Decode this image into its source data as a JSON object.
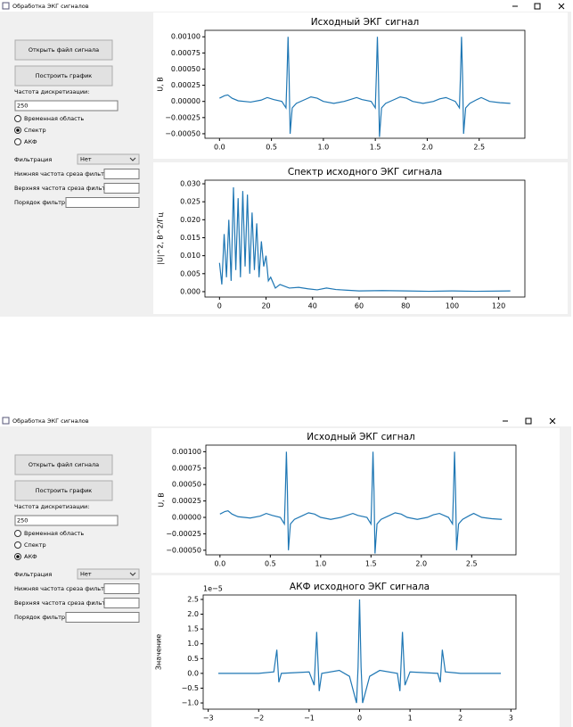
{
  "windows": [
    {
      "title": "Обработка ЭКГ сигналов",
      "buttons": [
        "Открыть файл сигнала",
        "Построить график"
      ],
      "sampling_label": "Частота дискретизации:",
      "sampling_value": "250",
      "radios": [
        {
          "label": "Временная область",
          "checked": false
        },
        {
          "label": "Спектр",
          "checked": true
        },
        {
          "label": "АКФ",
          "checked": false
        }
      ],
      "filter_label": "Фильтрация",
      "filter_value": "Нет",
      "low_label": "Нижняя частота среза фильтра:",
      "high_label": "Верхняя частота среза фильтра:",
      "order_label": "Порядок фильтра:",
      "plots": [
        {
          "type": "line",
          "title": "Исходный ЭКГ сигнал",
          "ylabel": "U, В",
          "color": "#1f77b4",
          "x": [
            0,
            0.05,
            0.08,
            0.12,
            0.18,
            0.3,
            0.4,
            0.46,
            0.52,
            0.6,
            0.64,
            0.65,
            0.66,
            0.67,
            0.68,
            0.7,
            0.74,
            0.81,
            0.88,
            0.94,
            1.0,
            1.1,
            1.2,
            1.26,
            1.32,
            1.37,
            1.46,
            1.5,
            1.51,
            1.52,
            1.53,
            1.54,
            1.56,
            1.6,
            1.67,
            1.74,
            1.8,
            1.86,
            1.96,
            2.06,
            2.12,
            2.18,
            2.24,
            2.27,
            2.31,
            2.32,
            2.33,
            2.34,
            2.35,
            2.37,
            2.41,
            2.48,
            2.52,
            2.6,
            2.7,
            2.8
          ],
          "y": [
            5e-05,
            9e-05,
            0.0001,
            5e-05,
            1e-05,
            -1e-05,
            2e-05,
            6e-05,
            3e-05,
            0,
            -0.0001,
            0.0004,
            0.001,
            0.0004,
            -0.0005,
            -0.0001,
            -3e-05,
            2e-05,
            7e-05,
            5e-05,
            0,
            -3e-05,
            0,
            3e-05,
            6e-05,
            3e-05,
            0,
            -0.0001,
            0.0004,
            0.001,
            0.0004,
            -0.00055,
            -0.0001,
            -3e-05,
            2e-05,
            7e-05,
            5e-05,
            0,
            -3e-05,
            0,
            4e-05,
            6e-05,
            2e-05,
            0,
            -0.0001,
            0.0004,
            0.001,
            0.0004,
            -0.0005,
            -0.0001,
            -3e-05,
            3e-05,
            6e-05,
            0,
            -2e-05,
            -3e-05
          ],
          "xlim": [
            -0.14,
            2.94
          ],
          "ylim": [
            -0.00057,
            0.0011
          ],
          "xticks": [
            {
              "value": 0,
              "label": "0.0"
            },
            0.5,
            {
              "value": 1,
              "label": "1.0"
            },
            1.5,
            {
              "value": 2,
              "label": "2.0"
            },
            2.5
          ],
          "yticks": [
            {
              "value": -0.0005,
              "label": "−0.00050"
            },
            {
              "value": -0.00025,
              "label": "−0.00025"
            },
            {
              "value": 0,
              "label": "0.00000"
            },
            {
              "value": 0.00025,
              "label": "0.00025"
            },
            {
              "value": 0.0005,
              "label": "0.00050"
            },
            {
              "value": 0.00075,
              "label": "0.00075"
            },
            {
              "value": 0.001,
              "label": "0.00100"
            }
          ]
        },
        {
          "type": "line",
          "title": "Спектр исходного ЭКГ сигнала",
          "ylabel": "|U|^2, В^2/Гц",
          "color": "#1f77b4",
          "x": [
            0,
            1,
            2,
            3,
            4,
            5,
            6,
            7,
            8,
            9,
            10,
            11,
            12,
            13,
            14,
            15,
            16,
            17,
            18,
            19,
            20,
            21,
            22,
            24,
            26,
            28,
            30,
            34,
            38,
            42,
            46,
            50,
            55,
            60,
            70,
            80,
            90,
            100,
            110,
            125
          ],
          "y": [
            0.008,
            0.002,
            0.016,
            0.004,
            0.02,
            0.003,
            0.029,
            0.006,
            0.026,
            0.004,
            0.028,
            0.007,
            0.027,
            0.005,
            0.022,
            0.006,
            0.019,
            0.004,
            0.014,
            0.007,
            0.01,
            0.003,
            0.004,
            0.001,
            0.002,
            0.0015,
            0.001,
            0.0012,
            0.0008,
            0.0005,
            0.001,
            0.0006,
            0.0004,
            0.0002,
            0.0003,
            0.0002,
            0.0001,
            0.0002,
            0.0001,
            0.0002
          ],
          "xlim": [
            -6.25,
            131.25
          ],
          "ylim": [
            -0.0015,
            0.031
          ],
          "xticks": [
            0,
            20,
            40,
            60,
            80,
            100,
            120
          ],
          "yticks": [
            {
              "value": 0,
              "label": "0.000"
            },
            {
              "value": 0.005,
              "label": "0.005"
            },
            {
              "value": 0.01,
              "label": "0.010"
            },
            {
              "value": 0.015,
              "label": "0.015"
            },
            {
              "value": 0.02,
              "label": "0.020"
            },
            {
              "value": 0.025,
              "label": "0.025"
            },
            {
              "value": 0.03,
              "label": "0.030"
            }
          ]
        }
      ]
    },
    {
      "title": "Обработка ЭКГ сигналов",
      "buttons": [
        "Открыть файл сигнала",
        "Построить график"
      ],
      "sampling_label": "Частота дискретизации:",
      "sampling_value": "250",
      "radios": [
        {
          "label": "Временная область",
          "checked": false
        },
        {
          "label": "Спектр",
          "checked": false
        },
        {
          "label": "АКФ",
          "checked": true
        }
      ],
      "filter_label": "Фильтрация",
      "filter_value": "Нет",
      "low_label": "Нижняя частота среза фильтра:",
      "high_label": "Верхняя частота среза фильтра:",
      "order_label": "Порядок фильтра:",
      "plots": [
        {
          "type": "line",
          "title": "Исходный ЭКГ сигнал",
          "ylabel": "U, В",
          "color": "#1f77b4",
          "x": [
            0,
            0.05,
            0.08,
            0.12,
            0.18,
            0.3,
            0.4,
            0.46,
            0.52,
            0.6,
            0.64,
            0.65,
            0.66,
            0.67,
            0.68,
            0.7,
            0.74,
            0.81,
            0.88,
            0.94,
            1.0,
            1.1,
            1.2,
            1.26,
            1.32,
            1.37,
            1.46,
            1.5,
            1.51,
            1.52,
            1.53,
            1.54,
            1.56,
            1.6,
            1.67,
            1.74,
            1.8,
            1.86,
            1.96,
            2.06,
            2.12,
            2.18,
            2.24,
            2.27,
            2.31,
            2.32,
            2.33,
            2.34,
            2.35,
            2.37,
            2.41,
            2.48,
            2.52,
            2.6,
            2.7,
            2.8
          ],
          "y": [
            5e-05,
            9e-05,
            0.0001,
            5e-05,
            1e-05,
            -1e-05,
            2e-05,
            6e-05,
            3e-05,
            0,
            -0.0001,
            0.0004,
            0.001,
            0.0004,
            -0.0005,
            -0.0001,
            -3e-05,
            2e-05,
            7e-05,
            5e-05,
            0,
            -3e-05,
            0,
            3e-05,
            6e-05,
            3e-05,
            0,
            -0.0001,
            0.0004,
            0.001,
            0.0004,
            -0.00055,
            -0.0001,
            -3e-05,
            2e-05,
            7e-05,
            5e-05,
            0,
            -3e-05,
            0,
            4e-05,
            6e-05,
            2e-05,
            0,
            -0.0001,
            0.0004,
            0.001,
            0.0004,
            -0.0005,
            -0.0001,
            -3e-05,
            3e-05,
            6e-05,
            0,
            -2e-05,
            -3e-05
          ],
          "xlim": [
            -0.14,
            2.94
          ],
          "ylim": [
            -0.00057,
            0.0011
          ],
          "xticks": [
            {
              "value": 0,
              "label": "0.0"
            },
            0.5,
            {
              "value": 1,
              "label": "1.0"
            },
            1.5,
            {
              "value": 2,
              "label": "2.0"
            },
            2.5
          ],
          "yticks": [
            {
              "value": -0.0005,
              "label": "−0.00050"
            },
            {
              "value": -0.00025,
              "label": "−0.00025"
            },
            {
              "value": 0,
              "label": "0.00000"
            },
            {
              "value": 0.00025,
              "label": "0.00025"
            },
            {
              "value": 0.0005,
              "label": "0.00050"
            },
            {
              "value": 0.00075,
              "label": "0.00075"
            },
            {
              "value": 0.001,
              "label": "0.00100"
            }
          ]
        },
        {
          "type": "line",
          "title": "АКФ исходного ЭКГ сигнала",
          "ylabel": "Значение",
          "offset_text": "1e−5",
          "color": "#1f77b4",
          "x": [
            -2.8,
            -2.0,
            -1.7,
            -1.64,
            -1.6,
            -1.55,
            -1.0,
            -0.9,
            -0.85,
            -0.8,
            -0.75,
            -0.4,
            -0.2,
            -0.06,
            -0.03,
            0,
            0.03,
            0.06,
            0.2,
            0.4,
            0.75,
            0.8,
            0.85,
            0.9,
            1.0,
            1.55,
            1.6,
            1.64,
            1.7,
            2.0,
            2.8
          ],
          "y": [
            0,
            0,
            0.05,
            0.8,
            -0.3,
            0,
            0.05,
            -0.4,
            1.4,
            -0.6,
            0,
            0.1,
            -0.1,
            -1.0,
            0.2,
            2.5,
            0.2,
            -1.0,
            -0.1,
            0.1,
            0,
            -0.6,
            1.4,
            -0.4,
            0.05,
            0,
            -0.3,
            0.8,
            0.05,
            0,
            0
          ],
          "xlim": [
            -3.1,
            3.1
          ],
          "ylim": [
            -1.21,
            2.65
          ],
          "xticks": [
            {
              "value": -3,
              "label": "−3"
            },
            {
              "value": -2,
              "label": "−2"
            },
            {
              "value": -1,
              "label": "−1"
            },
            0,
            1,
            2,
            3
          ],
          "yticks": [
            {
              "value": -1,
              "label": "−1.0"
            },
            {
              "value": -0.5,
              "label": "−0.5"
            },
            {
              "value": 0,
              "label": "0.0"
            },
            0.5,
            {
              "value": 1,
              "label": "1.0"
            },
            1.5,
            {
              "value": 2,
              "label": "2.0"
            },
            2.5
          ]
        }
      ]
    }
  ]
}
